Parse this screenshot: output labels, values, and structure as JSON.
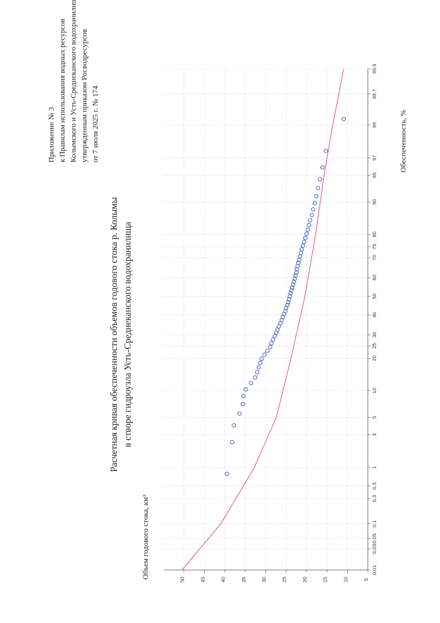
{
  "appendix": {
    "lines": [
      "Приложение № 3",
      "к Правилам использования водных ресурсов",
      "Колымского и Усть-Среднеканского водохранилищ,",
      "утвержденным приказом Росводресурсов",
      "от 7 июля 2025 г. № 174"
    ]
  },
  "title": {
    "line1": "Расчетная кривая обеспеченности объемов годового стока р. Колымы",
    "line2": "в створе гидроузла Усть-Среднеканского водохранилища"
  },
  "chart_data": {
    "type": "scatter",
    "x_scale": "probability",
    "xlabel": "Обеспеченность, %",
    "ylabel": "Объем годового стока, км³",
    "ylim": [
      5,
      55
    ],
    "xlim": [
      0.01,
      99.9
    ],
    "x_ticks": [
      0.01,
      0.03,
      0.05,
      0.1,
      0.3,
      0.5,
      1,
      3,
      5,
      10,
      20,
      25,
      30,
      40,
      50,
      60,
      70,
      75,
      80,
      90,
      95,
      97,
      99,
      99.7,
      99.9
    ],
    "x_tick_labels": [
      "0.01",
      "0.03",
      "0.05",
      "0.1",
      "0.3",
      "0.5",
      "1",
      "3",
      "5",
      "10",
      "20",
      "25",
      "30",
      "40",
      "50",
      "60",
      "70",
      "75",
      "80",
      "90",
      "95",
      "97",
      "99",
      "99.7",
      "99.9"
    ],
    "y_ticks": [
      5,
      10,
      15,
      20,
      25,
      30,
      35,
      40,
      45,
      50
    ],
    "y_tick_labels": [
      "5",
      "10",
      "15",
      "20",
      "25",
      "30",
      "35",
      "40",
      "45",
      "50"
    ],
    "grid": true,
    "series": [
      {
        "kind": "curve",
        "color": "#e0559a",
        "points": [
          {
            "p": 0.01,
            "v": 50.5
          },
          {
            "p": 0.1,
            "v": 41.0
          },
          {
            "p": 1,
            "v": 32.8
          },
          {
            "p": 5,
            "v": 27.4
          },
          {
            "p": 20,
            "v": 23.8
          },
          {
            "p": 50,
            "v": 20.4
          },
          {
            "p": 80,
            "v": 17.8
          },
          {
            "p": 95,
            "v": 15.7
          },
          {
            "p": 99,
            "v": 13.6
          },
          {
            "p": 99.9,
            "v": 10.9
          }
        ]
      },
      {
        "kind": "points",
        "color": "#3557b8",
        "points": [
          {
            "p": 0.79,
            "v": 39.5
          },
          {
            "p": 2.38,
            "v": 38.2
          },
          {
            "p": 3.97,
            "v": 37.8
          },
          {
            "p": 5.56,
            "v": 36.4
          },
          {
            "p": 7.14,
            "v": 35.6
          },
          {
            "p": 8.73,
            "v": 35.5
          },
          {
            "p": 10.3,
            "v": 34.9
          },
          {
            "p": 11.9,
            "v": 33.6
          },
          {
            "p": 13.5,
            "v": 32.6
          },
          {
            "p": 15.1,
            "v": 32.1
          },
          {
            "p": 16.7,
            "v": 31.7
          },
          {
            "p": 18.3,
            "v": 31.3
          },
          {
            "p": 19.8,
            "v": 31.0
          },
          {
            "p": 21.4,
            "v": 30.3
          },
          {
            "p": 23.0,
            "v": 29.6
          },
          {
            "p": 24.6,
            "v": 28.9
          },
          {
            "p": 26.2,
            "v": 28.6
          },
          {
            "p": 27.8,
            "v": 28.2
          },
          {
            "p": 29.4,
            "v": 27.8
          },
          {
            "p": 31.0,
            "v": 27.4
          },
          {
            "p": 32.5,
            "v": 27.1
          },
          {
            "p": 34.1,
            "v": 26.8
          },
          {
            "p": 35.7,
            "v": 26.4
          },
          {
            "p": 37.3,
            "v": 26.1
          },
          {
            "p": 38.9,
            "v": 25.8
          },
          {
            "p": 40.5,
            "v": 25.5
          },
          {
            "p": 42.1,
            "v": 25.2
          },
          {
            "p": 43.7,
            "v": 25.0
          },
          {
            "p": 45.2,
            "v": 24.7
          },
          {
            "p": 46.8,
            "v": 24.5
          },
          {
            "p": 48.4,
            "v": 24.3
          },
          {
            "p": 50.0,
            "v": 24.1
          },
          {
            "p": 51.6,
            "v": 23.9
          },
          {
            "p": 53.2,
            "v": 23.7
          },
          {
            "p": 54.8,
            "v": 23.5
          },
          {
            "p": 56.3,
            "v": 23.3
          },
          {
            "p": 57.9,
            "v": 23.1
          },
          {
            "p": 59.5,
            "v": 22.9
          },
          {
            "p": 61.1,
            "v": 22.7
          },
          {
            "p": 62.7,
            "v": 22.5
          },
          {
            "p": 64.3,
            "v": 22.4
          },
          {
            "p": 65.9,
            "v": 22.2
          },
          {
            "p": 67.5,
            "v": 22.0
          },
          {
            "p": 69.0,
            "v": 21.8
          },
          {
            "p": 70.6,
            "v": 21.6
          },
          {
            "p": 72.2,
            "v": 21.4
          },
          {
            "p": 73.8,
            "v": 21.2
          },
          {
            "p": 75.4,
            "v": 20.9
          },
          {
            "p": 77.0,
            "v": 20.6
          },
          {
            "p": 78.6,
            "v": 20.3
          },
          {
            "p": 80.2,
            "v": 20.0
          },
          {
            "p": 81.7,
            "v": 19.7
          },
          {
            "p": 83.3,
            "v": 19.4
          },
          {
            "p": 84.9,
            "v": 19.1
          },
          {
            "p": 86.5,
            "v": 18.7
          },
          {
            "p": 88.1,
            "v": 18.4
          },
          {
            "p": 89.7,
            "v": 18.0
          },
          {
            "p": 91.3,
            "v": 17.6
          },
          {
            "p": 92.9,
            "v": 17.2
          },
          {
            "p": 94.4,
            "v": 16.7
          },
          {
            "p": 96.0,
            "v": 16.1
          },
          {
            "p": 97.6,
            "v": 15.3
          },
          {
            "p": 99.2,
            "v": 10.9
          }
        ]
      }
    ]
  }
}
